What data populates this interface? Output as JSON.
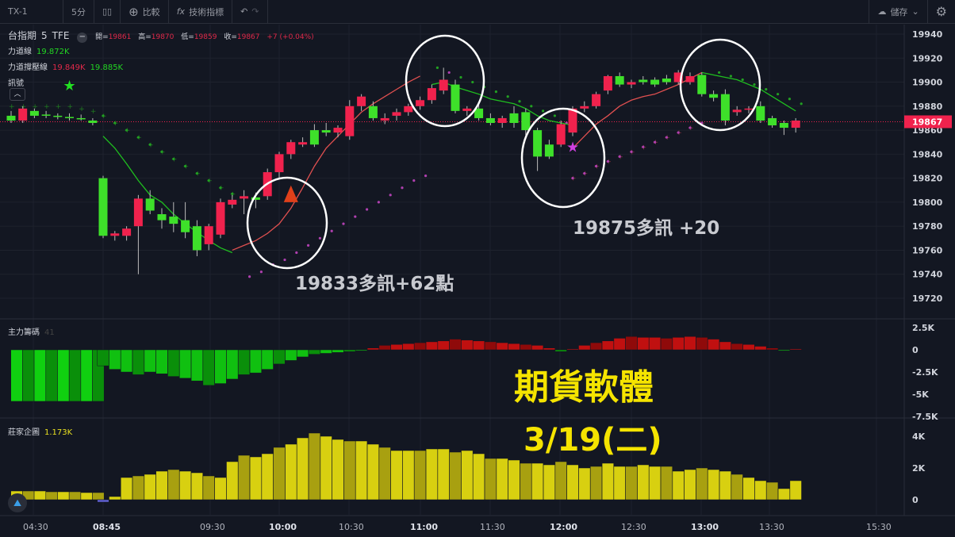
{
  "toolbar": {
    "symbol": "TX-1",
    "interval": "5分",
    "compare": "比較",
    "indicators": "技術指標",
    "save": "儲存"
  },
  "legend": {
    "name": "台指期",
    "res": "5",
    "exchange": "TFE",
    "open_label": "開=",
    "open": "19861",
    "high_label": "高=",
    "high": "19870",
    "low_label": "低=",
    "low": "19859",
    "close_label": "收=",
    "close": "19867",
    "change": "+7 (+0.04%)",
    "force_line_label": "力道線",
    "force_line_value": "19.872K",
    "force_band_label": "力道撐壓線",
    "force_band_low": "19.849K",
    "force_band_high": "19.885K",
    "signal_label": "訊號"
  },
  "price_axis": {
    "ticks": [
      "19940",
      "19920",
      "19900",
      "19880",
      "19860",
      "19840",
      "19820",
      "19800",
      "19780",
      "19760",
      "19740",
      "19720"
    ],
    "last_price": "19867"
  },
  "pane2": {
    "label": "主力籌碼",
    "value": "41",
    "ticks": [
      "2.5K",
      "0",
      "-2.5K",
      "-5K",
      "-7.5K"
    ]
  },
  "pane3": {
    "label": "莊家企圖",
    "value": "1.173K",
    "ticks": [
      "4K",
      "2K",
      "0"
    ]
  },
  "time_axis": [
    "04:30",
    "08:45",
    "09:30",
    "10:00",
    "10:30",
    "11:00",
    "11:30",
    "12:00",
    "12:30",
    "13:00",
    "13:30",
    "15:30"
  ],
  "annotations": {
    "signal1": "19833多訊+62點",
    "signal2": "19875多訊 +20",
    "promo_title": "期貨軟體",
    "promo_date": "3/19(二)"
  },
  "colors": {
    "up": "#f0224d",
    "down": "#3ee02a",
    "bg": "#131722",
    "sar_above": "#22a022",
    "sar_below": "#b040b0",
    "hist_green": "#10d010",
    "hist_red": "#d01010",
    "hist_yellow": "#d8d010"
  },
  "night_candles": [
    [
      19872,
      19876,
      19866,
      19868
    ],
    [
      19868,
      19880,
      19866,
      19878
    ],
    [
      19876,
      19878,
      19870,
      19872
    ],
    [
      19873,
      19876,
      19870,
      19872
    ],
    [
      19872,
      19874,
      19869,
      19871
    ],
    [
      19871,
      19874,
      19868,
      19870
    ],
    [
      19870,
      19873,
      19868,
      19869
    ],
    [
      19868,
      19870,
      19864,
      19866
    ]
  ],
  "day_candles": [
    [
      19820,
      19822,
      19770,
      19772
    ],
    [
      19772,
      19776,
      19768,
      19774
    ],
    [
      19772,
      19780,
      19768,
      19778
    ],
    [
      19780,
      19806,
      19740,
      19803
    ],
    [
      19803,
      19810,
      19790,
      19793
    ],
    [
      19790,
      19795,
      19778,
      19785
    ],
    [
      19788,
      19800,
      19775,
      19782
    ],
    [
      19785,
      19800,
      19770,
      19775
    ],
    [
      19780,
      19785,
      19755,
      19760
    ],
    [
      19765,
      19782,
      19760,
      19780
    ],
    [
      19773,
      19803,
      19770,
      19800
    ],
    [
      19798,
      19806,
      19795,
      19802
    ],
    [
      19803,
      19810,
      19790,
      19805
    ],
    [
      19804,
      19808,
      19795,
      19802
    ],
    [
      19805,
      19828,
      19802,
      19825
    ],
    [
      19825,
      19842,
      19820,
      19840
    ],
    [
      19840,
      19852,
      19836,
      19850
    ],
    [
      19848,
      19854,
      19846,
      19850
    ],
    [
      19860,
      19865,
      19846,
      19848
    ],
    [
      19860,
      19866,
      19855,
      19858
    ],
    [
      19858,
      19864,
      19854,
      19862
    ],
    [
      19855,
      19885,
      19852,
      19880
    ],
    [
      19880,
      19890,
      19876,
      19888
    ],
    [
      19880,
      19884,
      19868,
      19870
    ],
    [
      19868,
      19874,
      19865,
      19870
    ],
    [
      19872,
      19878,
      19868,
      19875
    ],
    [
      19875,
      19882,
      19872,
      19880
    ],
    [
      19880,
      19888,
      19877,
      19885
    ],
    [
      19885,
      19898,
      19882,
      19895
    ],
    [
      19893,
      19912,
      19890,
      19902
    ],
    [
      19898,
      19902,
      19874,
      19876
    ],
    [
      19876,
      19880,
      19872,
      19878
    ],
    [
      19878,
      19882,
      19868,
      19870
    ],
    [
      19870,
      19874,
      19864,
      19866
    ],
    [
      19866,
      19872,
      19862,
      19870
    ],
    [
      19874,
      19880,
      19862,
      19866
    ],
    [
      19875,
      19878,
      19856,
      19860
    ],
    [
      19860,
      19862,
      19826,
      19838
    ],
    [
      19848,
      19852,
      19836,
      19838
    ],
    [
      19848,
      19868,
      19846,
      19865
    ],
    [
      19858,
      19880,
      19855,
      19878
    ],
    [
      19878,
      19884,
      19875,
      19880
    ],
    [
      19880,
      19892,
      19878,
      19890
    ],
    [
      19893,
      19906,
      19890,
      19905
    ],
    [
      19905,
      19908,
      19896,
      19898
    ],
    [
      19898,
      19902,
      19895,
      19900
    ],
    [
      19902,
      19905,
      19898,
      19900
    ],
    [
      19902,
      19904,
      19896,
      19898
    ],
    [
      19903,
      19906,
      19898,
      19900
    ],
    [
      19900,
      19910,
      19898,
      19908
    ],
    [
      19900,
      19908,
      19898,
      19905
    ],
    [
      19906,
      19908,
      19888,
      19890
    ],
    [
      19890,
      19893,
      19884,
      19887
    ],
    [
      19890,
      19894,
      19864,
      19868
    ],
    [
      19875,
      19880,
      19872,
      19877
    ],
    [
      19877,
      19880,
      19874,
      19878
    ],
    [
      19880,
      19884,
      19866,
      19868
    ],
    [
      19870,
      19872,
      19862,
      19864
    ],
    [
      19866,
      19868,
      19856,
      19862
    ],
    [
      19862,
      19870,
      19858,
      19868
    ]
  ],
  "force_line": [
    19855,
    19845,
    19832,
    19818,
    19806,
    19800,
    19790,
    19782,
    19775,
    19768,
    19762,
    19758,
    null,
    null,
    null,
    null,
    null,
    null,
    null,
    null,
    null,
    null,
    null,
    null,
    null,
    null,
    null,
    null,
    19898,
    19900,
    19896,
    19893,
    19890,
    19886,
    19884,
    19882,
    19878,
    19872,
    19868,
    19866,
    19864,
    null,
    null,
    null,
    null,
    null,
    null,
    null,
    null,
    null,
    null,
    19908,
    19906,
    19904,
    19902,
    19898,
    19894,
    19888,
    19882,
    19876
  ],
  "support_line": [
    null,
    null,
    null,
    null,
    null,
    null,
    null,
    null,
    null,
    null,
    null,
    19760,
    19764,
    19768,
    19774,
    19782,
    19795,
    19812,
    19830,
    19845,
    19855,
    19865,
    19875,
    19882,
    19888,
    19894,
    19900,
    19905,
    null,
    null,
    null,
    null,
    null,
    null,
    null,
    null,
    null,
    null,
    null,
    null,
    19845,
    19855,
    19865,
    19872,
    19880,
    19885,
    19888,
    19890,
    19894,
    19898,
    19903,
    19908
  ],
  "sar": [
    19872,
    19866,
    19860,
    19854,
    19848,
    19842,
    19836,
    19830,
    19824,
    19818,
    19812,
    19807,
    19738,
    19742,
    19748,
    19752,
    19758,
    19764,
    19770,
    19776,
    19782,
    19788,
    19794,
    19800,
    19806,
    19812,
    19818,
    19822,
    19912,
    19908,
    19904,
    19900,
    19896,
    19892,
    19888,
    19884,
    19880,
    19876,
    19872,
    19866,
    19820,
    19824,
    19830,
    19834,
    19838,
    19842,
    19846,
    19850,
    19854,
    19858,
    19862,
    19866,
    19908,
    19905,
    19902,
    19898,
    19894,
    19890,
    19886,
    19882
  ],
  "night_sar": [
    19880,
    19880,
    19880,
    19880,
    19880,
    19880,
    19878,
    19876
  ],
  "main_force_night": [
    -5.8,
    -5.8,
    -5.8,
    -5.8,
    -5.8,
    -5.8,
    -5.8,
    -5.8
  ],
  "main_force": [
    -1.8,
    -2.2,
    -2.5,
    -2.8,
    -2.5,
    -2.7,
    -3,
    -3.2,
    -3.5,
    -4,
    -3.8,
    -3.3,
    -2.8,
    -2.6,
    -2.2,
    -1.6,
    -1.2,
    -0.8,
    -0.5,
    -0.4,
    -0.3,
    -0.2,
    -0.1,
    0.2,
    0.5,
    0.6,
    0.7,
    0.8,
    0.9,
    1.0,
    1.2,
    1.1,
    1.0,
    0.9,
    0.8,
    0.7,
    0.6,
    0.5,
    0.2,
    -0.2,
    0.1,
    0.5,
    0.8,
    1.0,
    1.3,
    1.5,
    1.4,
    1.4,
    1.3,
    1.4,
    1.5,
    1.4,
    1.2,
    0.9,
    0.7,
    0.6,
    0.4,
    0.2,
    -0.1,
    0.1
  ],
  "dealer_night": [
    0.55,
    0.55,
    0.55,
    0.5,
    0.5,
    0.5,
    0.45,
    0.45
  ],
  "dealer": [
    -0.15,
    0.2,
    1.4,
    1.5,
    1.6,
    1.8,
    1.9,
    1.8,
    1.7,
    1.5,
    1.4,
    2.4,
    2.8,
    2.7,
    2.9,
    3.3,
    3.5,
    3.9,
    4.2,
    4.0,
    3.8,
    3.7,
    3.7,
    3.5,
    3.3,
    3.1,
    3.1,
    3.1,
    3.2,
    3.2,
    3.0,
    3.1,
    2.9,
    2.6,
    2.6,
    2.5,
    2.3,
    2.3,
    2.2,
    2.4,
    2.2,
    2.0,
    2.1,
    2.3,
    2.1,
    2.1,
    2.2,
    2.1,
    2.1,
    1.8,
    1.9,
    2.0,
    1.9,
    1.8,
    1.6,
    1.4,
    1.2,
    1.1,
    0.7,
    1.2
  ]
}
